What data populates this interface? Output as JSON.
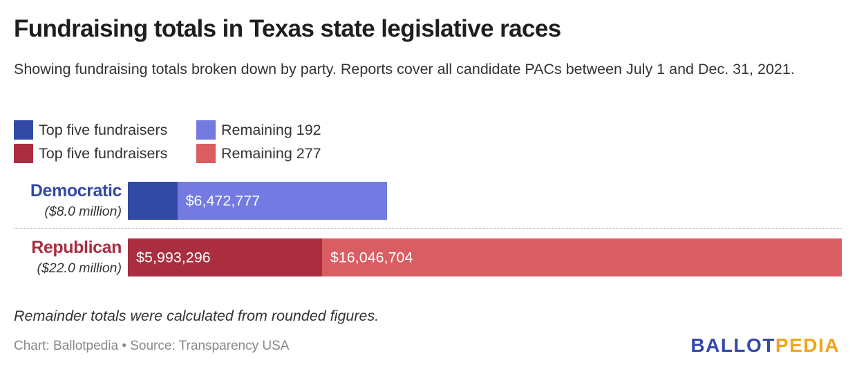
{
  "header": {
    "title": "Fundraising totals in Texas state legislative races",
    "subtitle": "Showing fundraising totals broken down by party. Reports cover all candidate PACs between July 1 and Dec. 31, 2021."
  },
  "legend": {
    "rows": [
      [
        {
          "label": "Top five fundraisers",
          "color": "#3349a6"
        },
        {
          "label": "Remaining 192",
          "color": "#737be3"
        }
      ],
      [
        {
          "label": "Top five fundraisers",
          "color": "#aa2e40"
        },
        {
          "label": "Remaining 277",
          "color": "#da5d63"
        }
      ]
    ]
  },
  "chart_data": {
    "type": "bar",
    "orientation": "horizontal",
    "stacked": true,
    "title": "Fundraising totals in Texas state legislative races",
    "categories": [
      {
        "name": "Democratic",
        "subtitle": "($8.0 million)",
        "color": "#3349a6"
      },
      {
        "name": "Republican",
        "subtitle": "($22.0 million)",
        "color": "#aa2e40"
      }
    ],
    "series": [
      {
        "name": "Top five fundraisers",
        "values": [
          1527223,
          5993296
        ],
        "labels": [
          "",
          "$5,993,296"
        ],
        "colors": [
          "#3349a6",
          "#aa2e40"
        ]
      },
      {
        "name": "Remaining",
        "values": [
          6472777,
          16046704
        ],
        "labels": [
          "$6,472,777",
          "$16,046,704"
        ],
        "colors": [
          "#737be3",
          "#da5d63"
        ]
      }
    ],
    "xlim": [
      0,
      22040000
    ],
    "grid": false
  },
  "footer": {
    "note": "Remainder totals were calculated from rounded figures.",
    "source": "Chart: Ballotpedia • Source: Transparency USA",
    "logo_part1": "BALLOT",
    "logo_part2": "PEDIA"
  }
}
